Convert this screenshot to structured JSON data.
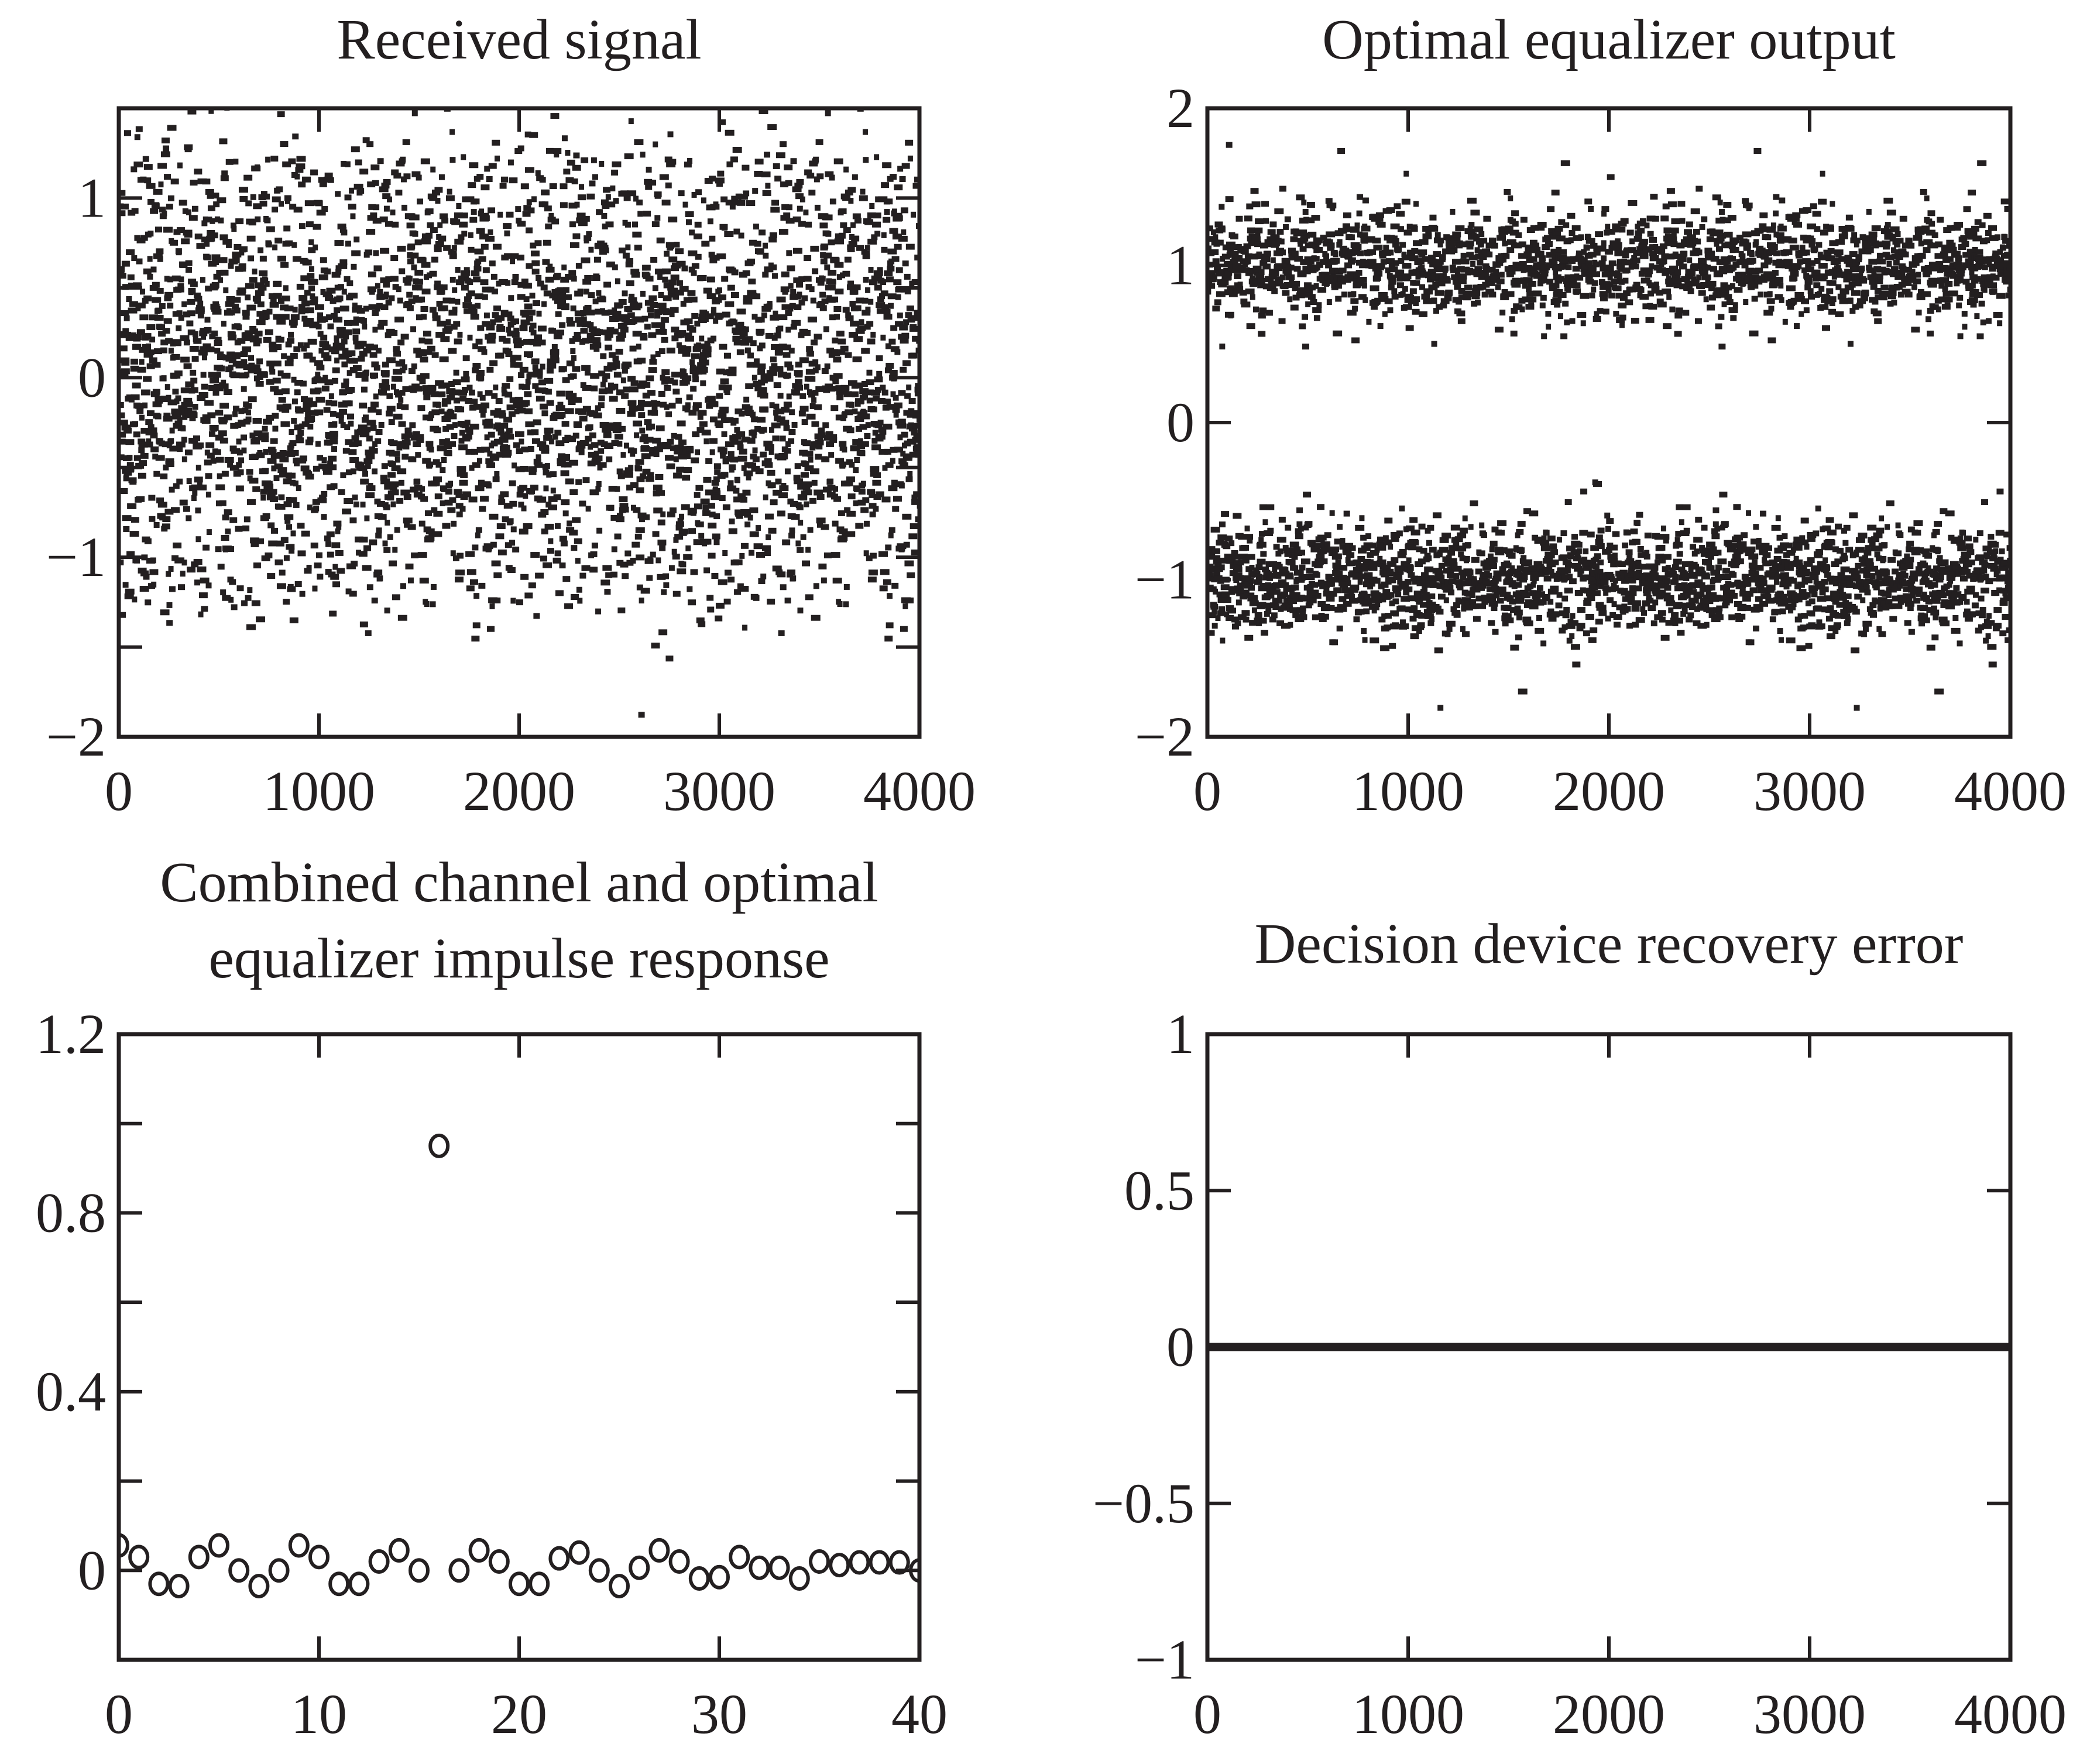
{
  "colors": {
    "ink": "#231f20",
    "background": "#ffffff"
  },
  "chart_data": [
    {
      "id": "received",
      "type": "scatter",
      "title": [
        "Received signal"
      ],
      "xlim": [
        0,
        4000
      ],
      "ylim": [
        -2,
        1.5
      ],
      "xticks": [
        0,
        1000,
        2000,
        3000,
        4000
      ],
      "xtick_labels": [
        "0",
        "1000",
        "2000",
        "3000",
        "4000"
      ],
      "yticks": [
        -2,
        -1.5,
        -1,
        -0.5,
        0,
        0.5,
        1
      ],
      "ytick_labels": [
        "−2",
        "",
        "−1",
        "",
        "0",
        "",
        "1"
      ],
      "n_points": 4000,
      "marker": "dot",
      "description_of_values": "noisy received samples spread roughly between -1.5 and 1.5 around 0"
    },
    {
      "id": "equalizer",
      "type": "scatter",
      "title": [
        "Optimal equalizer output"
      ],
      "xlim": [
        0,
        4000
      ],
      "ylim": [
        -2,
        2
      ],
      "xticks": [
        0,
        1000,
        2000,
        3000,
        4000
      ],
      "xtick_labels": [
        "0",
        "1000",
        "2000",
        "3000",
        "4000"
      ],
      "yticks": [
        -2,
        -1,
        0,
        1,
        2
      ],
      "ytick_labels": [
        "−2",
        "−1",
        "0",
        "1",
        "2"
      ],
      "n_points": 4000,
      "marker": "dot",
      "description_of_values": "two clusters centered at +1 and -1, each spanning about ±0.6"
    },
    {
      "id": "impulse",
      "type": "scatter",
      "title": [
        "Combined channel and optimal",
        "equalizer impulse response"
      ],
      "xlim": [
        0,
        40
      ],
      "ylim": [
        -0.2,
        1.2
      ],
      "xticks": [
        0,
        10,
        20,
        30,
        40
      ],
      "xtick_labels": [
        "0",
        "10",
        "20",
        "30",
        "40"
      ],
      "yticks": [
        0,
        0.2,
        0.4,
        0.6,
        0.8,
        1.0,
        1.2
      ],
      "ytick_labels": [
        "0",
        "",
        "0.4",
        "",
        "0.8",
        "",
        "1.2"
      ],
      "marker": "circle",
      "x": [
        0,
        1,
        2,
        3,
        4,
        5,
        6,
        7,
        8,
        9,
        10,
        11,
        12,
        13,
        14,
        15,
        16,
        17,
        18,
        19,
        20,
        21,
        22,
        23,
        24,
        25,
        26,
        27,
        28,
        29,
        30,
        31,
        32,
        33,
        34,
        35,
        36,
        37,
        38,
        39,
        40
      ],
      "y": [
        0.056,
        0.03,
        -0.03,
        -0.035,
        0.03,
        0.056,
        0,
        -0.035,
        0,
        0.056,
        0.03,
        -0.03,
        -0.03,
        0.02,
        0.045,
        0,
        0.95,
        0,
        0.045,
        0.02,
        -0.03,
        -0.03,
        0.027,
        0.04,
        0,
        -0.035,
        0.006,
        0.045,
        0.02,
        -0.018,
        -0.015,
        0.03,
        0.006,
        0.006,
        -0.018,
        0.02,
        0.012,
        0.018,
        0.018,
        0.018,
        0
      ]
    },
    {
      "id": "error",
      "type": "line",
      "title": [
        "Decision device recovery error"
      ],
      "xlim": [
        0,
        4000
      ],
      "ylim": [
        -1,
        1
      ],
      "xticks": [
        0,
        1000,
        2000,
        3000,
        4000
      ],
      "xtick_labels": [
        "0",
        "1000",
        "2000",
        "3000",
        "4000"
      ],
      "yticks": [
        -1,
        -0.5,
        0,
        0.5,
        1
      ],
      "ytick_labels": [
        "−1",
        "−0.5",
        "0",
        "0.5",
        "1"
      ],
      "x": [
        0,
        4000
      ],
      "y": [
        0,
        0
      ]
    }
  ]
}
